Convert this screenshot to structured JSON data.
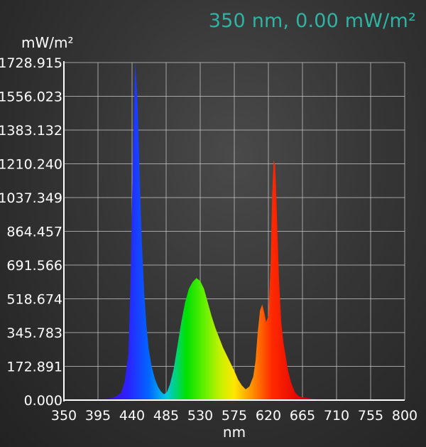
{
  "readout": "350 nm, 0.00 mW/m²",
  "chart_data": {
    "type": "area",
    "ylabel": "mW/m²",
    "xlabel": "nm",
    "xlim": [
      350,
      800
    ],
    "ylim": [
      0,
      1728.915
    ],
    "x_ticks": [
      "350",
      "395",
      "440",
      "485",
      "530",
      "575",
      "620",
      "665",
      "710",
      "755",
      "800"
    ],
    "y_ticks": [
      "0.000",
      "172.891",
      "345.783",
      "518.674",
      "691.566",
      "864.457",
      "1037.349",
      "1210.240",
      "1383.132",
      "1556.023",
      "1728.915"
    ],
    "grid": true,
    "fill": "wavelength-spectrum-colors",
    "x": [
      350,
      380,
      400,
      415,
      425,
      430,
      435,
      438,
      441,
      444,
      447,
      450,
      453,
      456,
      459,
      462,
      466,
      470,
      474,
      478,
      482,
      486,
      490,
      495,
      500,
      505,
      510,
      515,
      520,
      525,
      530,
      535,
      540,
      545,
      550,
      555,
      560,
      565,
      570,
      575,
      580,
      585,
      590,
      595,
      600,
      603,
      606,
      609,
      612,
      615,
      617,
      620,
      623,
      625,
      627,
      629,
      631,
      634,
      637,
      640,
      643,
      646,
      650,
      655,
      660,
      665,
      675,
      690,
      710,
      740,
      770,
      800
    ],
    "y": [
      0,
      2,
      5,
      12,
      35,
      90,
      230,
      600,
      1250,
      1728,
      1550,
      1150,
      800,
      550,
      380,
      260,
      170,
      110,
      70,
      45,
      30,
      40,
      80,
      160,
      280,
      400,
      500,
      570,
      605,
      625,
      610,
      570,
      500,
      430,
      370,
      320,
      270,
      230,
      190,
      150,
      105,
      75,
      55,
      70,
      120,
      200,
      350,
      460,
      490,
      440,
      400,
      430,
      700,
      1050,
      1230,
      1200,
      980,
      620,
      400,
      290,
      220,
      150,
      90,
      40,
      20,
      15,
      8,
      4,
      2,
      1,
      0,
      0
    ]
  }
}
